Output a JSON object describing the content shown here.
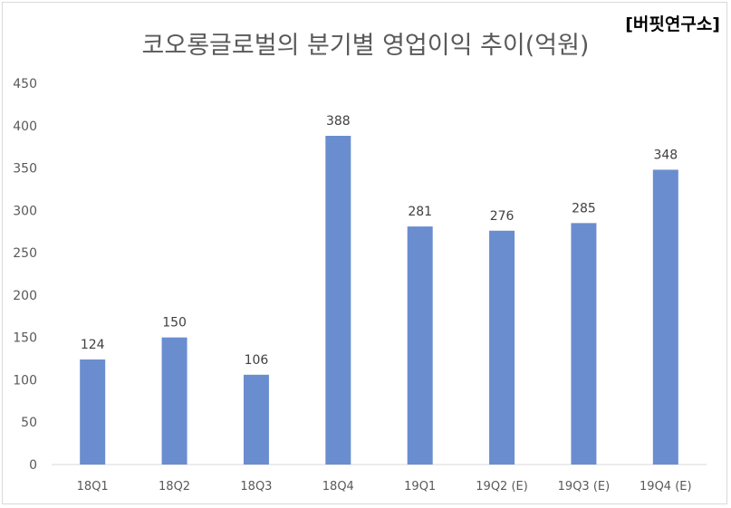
{
  "source_label": "[버핏연구소]",
  "chart_data": {
    "type": "bar",
    "title": "코오롱글로벌의 분기별 영업이익 추이(억원)",
    "xlabel": "",
    "ylabel": "",
    "categories": [
      "18Q1",
      "18Q2",
      "18Q3",
      "18Q4",
      "19Q1",
      "19Q2 (E)",
      "19Q3 (E)",
      "19Q4 (E)"
    ],
    "values": [
      124,
      150,
      106,
      388,
      281,
      276,
      285,
      348
    ],
    "ylim": [
      0,
      450
    ],
    "yticks": [
      "0",
      "50",
      "100",
      "150",
      "200",
      "250",
      "300",
      "350",
      "400",
      "450"
    ],
    "data_labels": [
      "124",
      "150",
      "106",
      "388",
      "281",
      "276",
      "285",
      "348"
    ],
    "grid": false,
    "legend": "none",
    "bar_color": "#6a8dcf",
    "axis_color": "#d9d9d9",
    "text_color": "#595959"
  }
}
